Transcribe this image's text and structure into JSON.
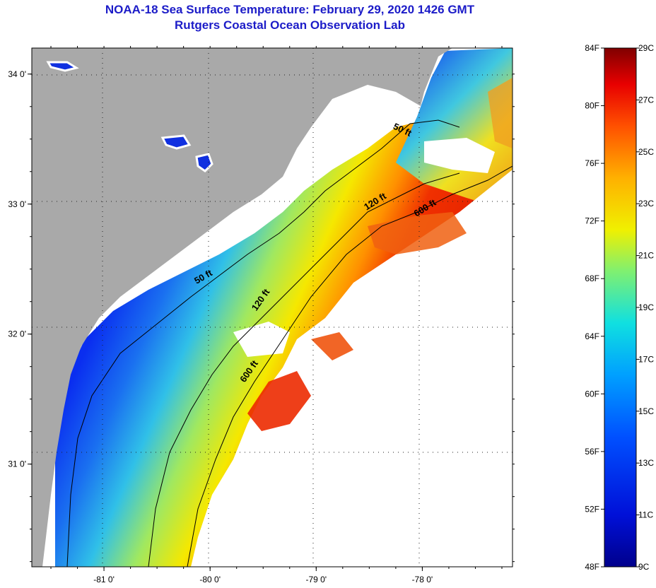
{
  "title": "NOAA-18 Sea Surface Temperature:  February 29, 2020 1426 GMT",
  "subtitle": "Rutgers Coastal Ocean Observation Lab",
  "map": {
    "lon_range": [
      -81.68,
      -77.15
    ],
    "lat_range": [
      30.21,
      34.2
    ],
    "lon_ticks": [
      "-81 0'",
      "-80 0'",
      "-79 0'",
      "-78 0'"
    ],
    "lon_tick_values": [
      -81,
      -80,
      -79,
      -78
    ],
    "lat_ticks": [
      "34 0'",
      "33 0'",
      "32 0'",
      "31 0'"
    ],
    "lat_tick_values": [
      34,
      33,
      32,
      31
    ],
    "contour_labels": [
      {
        "text": "50 ft",
        "lon": -78.2,
        "lat": 33.55
      },
      {
        "text": "50 ft",
        "lon": -80.05,
        "lat": 32.42
      },
      {
        "text": "120 ft",
        "lon": -78.43,
        "lat": 33.0
      },
      {
        "text": "120 ft",
        "lon": -79.5,
        "lat": 32.25
      },
      {
        "text": "600 ft",
        "lon": -77.96,
        "lat": 32.95
      },
      {
        "text": "600 ft",
        "lon": -79.61,
        "lat": 31.7
      }
    ],
    "colors": {
      "land": "#a9a9a9",
      "no_data": "#ffffff",
      "grid": "#333333"
    }
  },
  "colorbar": {
    "fahrenheit_labels": [
      "84F",
      "80F",
      "76F",
      "72F",
      "68F",
      "64F",
      "60F",
      "56F",
      "52F",
      "48F"
    ],
    "celsius_labels": [
      "29C",
      "27C",
      "25C",
      "23C",
      "21C",
      "19C",
      "17C",
      "15C",
      "13C",
      "11C",
      "9C"
    ],
    "range_c": [
      9,
      29
    ]
  }
}
